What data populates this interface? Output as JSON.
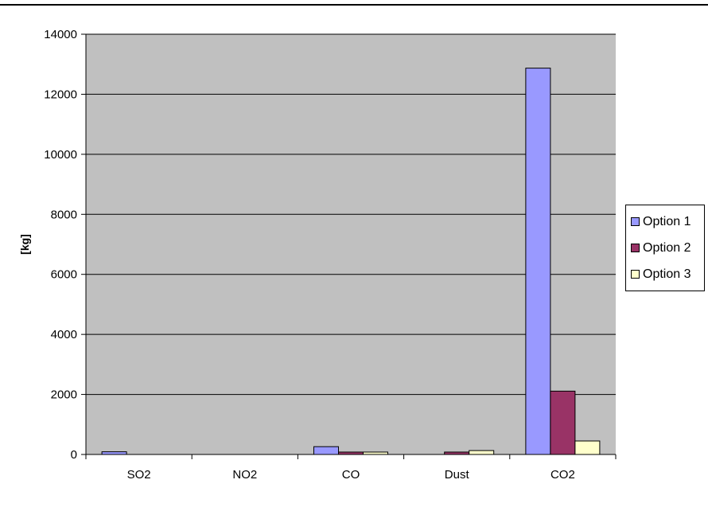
{
  "chart_data": {
    "type": "bar",
    "title": "",
    "xlabel": "",
    "ylabel": "[kg]",
    "categories": [
      "SO2",
      "NO2",
      "CO",
      "Dust",
      "CO2"
    ],
    "series": [
      {
        "name": "Option 1",
        "color": "#9999ff",
        "values": [
          90,
          0,
          260,
          0,
          12870
        ]
      },
      {
        "name": "Option 2",
        "color": "#993366",
        "values": [
          0,
          0,
          80,
          80,
          2110
        ]
      },
      {
        "name": "Option 3",
        "color": "#ffffcc",
        "values": [
          0,
          0,
          80,
          130,
          450
        ]
      }
    ],
    "ylim": [
      0,
      14000
    ],
    "yticks": [
      "0",
      "2000",
      "4000",
      "6000",
      "8000",
      "10000",
      "12000",
      "14000"
    ],
    "grid": true,
    "plot_background": "#c0c0c0",
    "legend": "right"
  }
}
